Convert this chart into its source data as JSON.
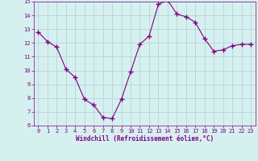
{
  "x": [
    0,
    1,
    2,
    3,
    4,
    5,
    6,
    7,
    8,
    9,
    10,
    11,
    12,
    13,
    14,
    15,
    16,
    17,
    18,
    19,
    20,
    21,
    22,
    23
  ],
  "y": [
    12.8,
    12.1,
    11.7,
    10.1,
    9.5,
    7.9,
    7.5,
    6.6,
    6.5,
    7.9,
    9.9,
    11.9,
    12.5,
    14.8,
    15.1,
    14.1,
    13.9,
    13.5,
    12.3,
    11.4,
    11.5,
    11.8,
    11.9,
    11.9
  ],
  "line_color": "#800080",
  "marker": "+",
  "marker_size": 4,
  "bg_color": "#d6f0f0",
  "grid_color": "#b0d0d0",
  "xlabel": "Windchill (Refroidissement éolien,°C)",
  "ylim": [
    6,
    15
  ],
  "xlim_min": -0.5,
  "xlim_max": 23.5,
  "yticks": [
    6,
    7,
    8,
    9,
    10,
    11,
    12,
    13,
    14,
    15
  ],
  "xticks": [
    0,
    1,
    2,
    3,
    4,
    5,
    6,
    7,
    8,
    9,
    10,
    11,
    12,
    13,
    14,
    15,
    16,
    17,
    18,
    19,
    20,
    21,
    22,
    23
  ],
  "label_color": "#800080",
  "tick_fontsize": 5.0,
  "xlabel_fontsize": 5.5,
  "xlabel_fontweight": "bold"
}
